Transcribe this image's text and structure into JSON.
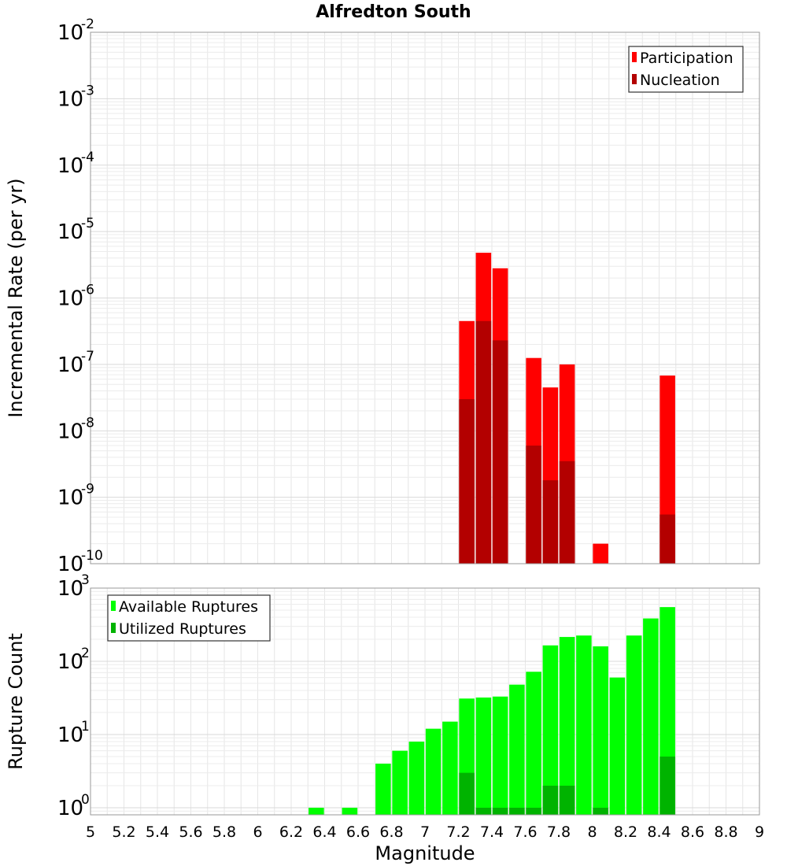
{
  "chart_data": [
    {
      "type": "bar",
      "title": "Alfredton South",
      "xlabel": "",
      "ylabel": "Incremental Rate (per yr)",
      "yscale": "log",
      "xlim": [
        5,
        9
      ],
      "ylim": [
        1e-10,
        0.01
      ],
      "grid": true,
      "legend_position": "top-right",
      "x_ticks": [
        "5",
        "5.2",
        "5.4",
        "5.6",
        "5.8",
        "6",
        "6.2",
        "6.4",
        "6.6",
        "6.8",
        "7",
        "7.2",
        "7.4",
        "7.6",
        "7.8",
        "8",
        "8.2",
        "8.4",
        "8.6",
        "8.8",
        "9"
      ],
      "y_ticks": [
        {
          "base": "10",
          "exp": "-10"
        },
        {
          "base": "10",
          "exp": "-9"
        },
        {
          "base": "10",
          "exp": "-8"
        },
        {
          "base": "10",
          "exp": "-7"
        },
        {
          "base": "10",
          "exp": "-6"
        },
        {
          "base": "10",
          "exp": "-5"
        },
        {
          "base": "10",
          "exp": "-4"
        },
        {
          "base": "10",
          "exp": "-3"
        },
        {
          "base": "10",
          "exp": "-2"
        }
      ],
      "x": [
        7.25,
        7.35,
        7.45,
        7.65,
        7.75,
        7.85,
        8.05,
        8.45
      ],
      "series": [
        {
          "name": "Participation",
          "color": "#ff0000",
          "values": [
            4.5e-07,
            4.8e-06,
            2.8e-06,
            1.25e-07,
            4.5e-08,
            1e-07,
            2e-10,
            6.8e-08
          ]
        },
        {
          "name": "Nucleation",
          "color": "#b30000",
          "values": [
            3e-08,
            4.5e-07,
            2.3e-07,
            6e-09,
            1.8e-09,
            3.5e-09,
            null,
            5.5e-10
          ]
        }
      ]
    },
    {
      "type": "bar",
      "title": "",
      "xlabel": "Magnitude",
      "ylabel": "Rupture Count",
      "yscale": "log",
      "xlim": [
        5,
        9
      ],
      "ylim": [
        0.8,
        1000
      ],
      "grid": true,
      "legend_position": "top-left",
      "x_ticks": [
        "5",
        "5.2",
        "5.4",
        "5.6",
        "5.8",
        "6",
        "6.2",
        "6.4",
        "6.6",
        "6.8",
        "7",
        "7.2",
        "7.4",
        "7.6",
        "7.8",
        "8",
        "8.2",
        "8.4",
        "8.6",
        "8.8",
        "9"
      ],
      "y_ticks": [
        {
          "base": "10",
          "exp": "0"
        },
        {
          "base": "10",
          "exp": "1"
        },
        {
          "base": "10",
          "exp": "2"
        },
        {
          "base": "10",
          "exp": "3"
        }
      ],
      "x": [
        6.35,
        6.55,
        6.75,
        6.85,
        6.95,
        7.05,
        7.15,
        7.25,
        7.35,
        7.45,
        7.55,
        7.65,
        7.75,
        7.85,
        7.95,
        8.05,
        8.15,
        8.25,
        8.35,
        8.45
      ],
      "series": [
        {
          "name": "Available Ruptures",
          "color": "#00ff00",
          "values": [
            1,
            1,
            4,
            6,
            8,
            12,
            15,
            31,
            32,
            33,
            48,
            72,
            165,
            215,
            225,
            160,
            60,
            225,
            385,
            550
          ]
        },
        {
          "name": "Utilized Ruptures",
          "color": "#00b300",
          "values": [
            null,
            null,
            null,
            null,
            null,
            null,
            null,
            3,
            1,
            1,
            1,
            1,
            2,
            2,
            null,
            1,
            null,
            null,
            null,
            5
          ]
        }
      ]
    }
  ]
}
